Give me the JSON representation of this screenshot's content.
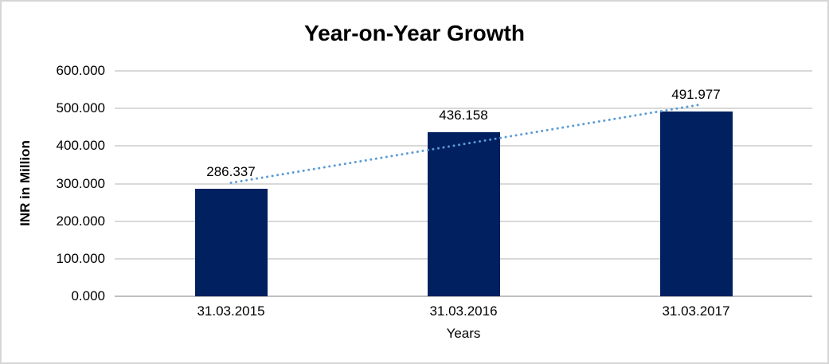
{
  "chart_data": {
    "type": "bar",
    "title": "Year-on-Year Growth",
    "xlabel": "Years",
    "ylabel": "INR in Million",
    "categories": [
      "31.03.2015",
      "31.03.2016",
      "31.03.2017"
    ],
    "values": [
      286.337,
      436.158,
      491.977
    ],
    "data_labels": [
      "286.337",
      "436.158",
      "491.977"
    ],
    "ylim": [
      0,
      600
    ],
    "ytick_step": 100,
    "ytick_labels": [
      "0.000",
      "100.000",
      "200.000",
      "300.000",
      "400.000",
      "500.000",
      "600.000"
    ],
    "grid": true,
    "legend": false,
    "bar_color": "#002060",
    "gridline_color": "#d9d9d9",
    "axis_line_color": "#bfbfbf",
    "trendline": {
      "type": "linear",
      "style": "dotted",
      "color": "#5b9bd5"
    }
  }
}
